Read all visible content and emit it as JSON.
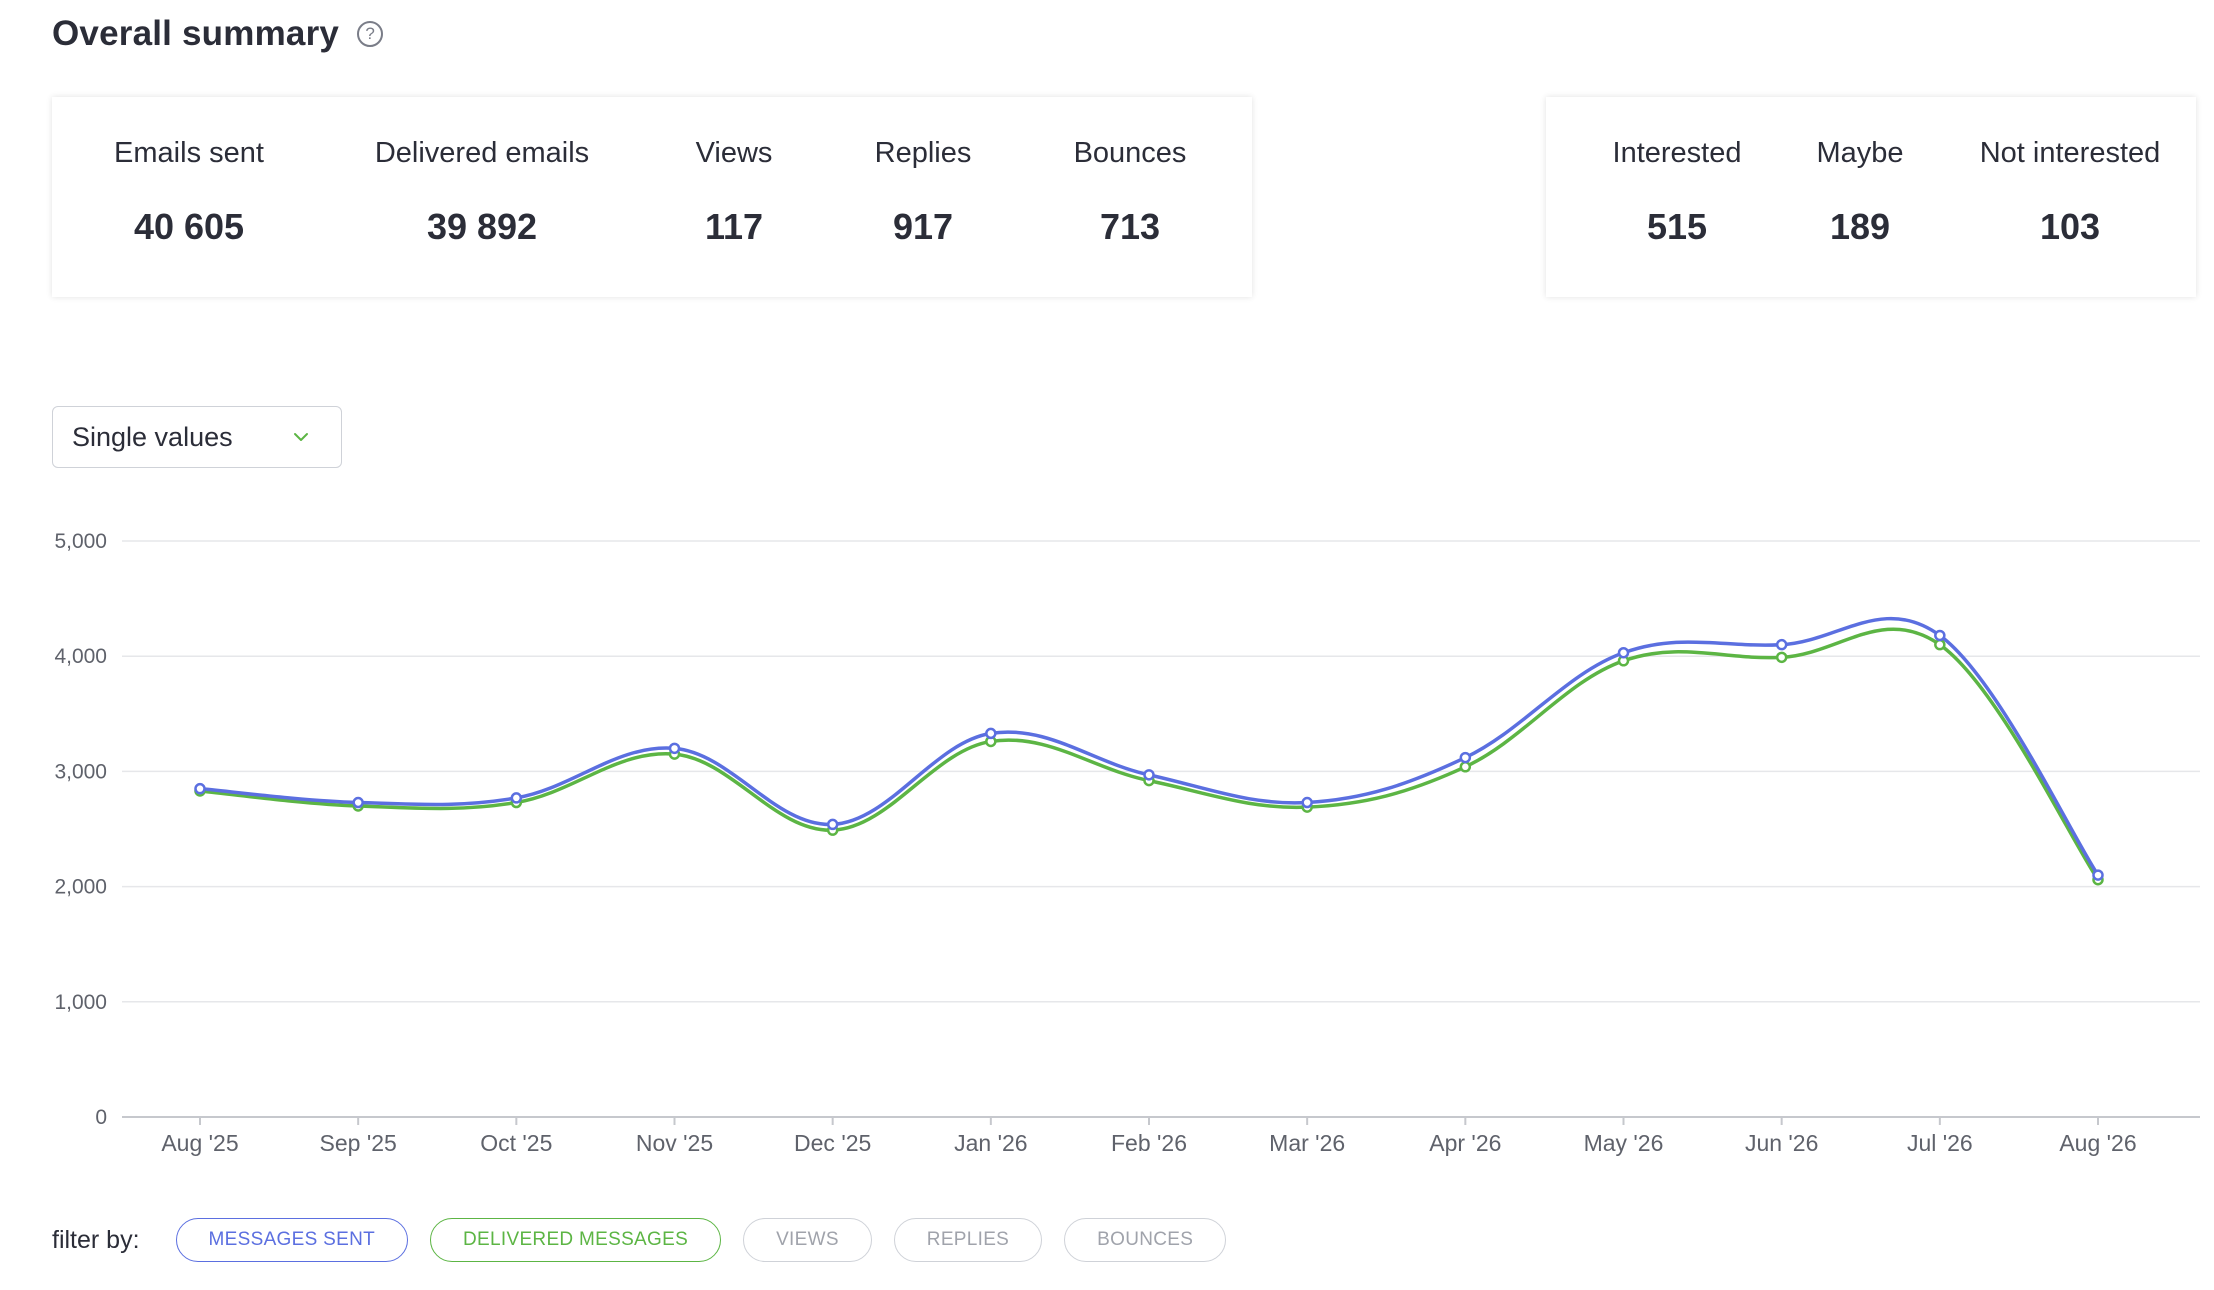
{
  "header": {
    "title": "Overall summary",
    "help_icon": "question-circle-icon"
  },
  "summary": [
    {
      "label": "Emails sent",
      "value": "40 605"
    },
    {
      "label": "Delivered emails",
      "value": "39 892"
    },
    {
      "label": "Views",
      "value": "117"
    },
    {
      "label": "Replies",
      "value": "917"
    },
    {
      "label": "Bounces",
      "value": "713"
    }
  ],
  "sentiment": [
    {
      "label": "Interested",
      "value": "515"
    },
    {
      "label": "Maybe",
      "value": "189"
    },
    {
      "label": "Not interested",
      "value": "103"
    }
  ],
  "view_select": {
    "value": "Single values",
    "icon": "chevron-down-icon"
  },
  "colors": {
    "messages_sent": "#5b6fe0",
    "delivered": "#5cb544",
    "grid": "#e6e7ea",
    "axis": "#c6c8cd",
    "tick_text": "#5f626b"
  },
  "chart_data": {
    "type": "line",
    "x": [
      "Aug '25",
      "Sep '25",
      "Oct '25",
      "Nov '25",
      "Dec '25",
      "Jan '26",
      "Feb '26",
      "Mar '26",
      "Apr '26",
      "May '26",
      "Jun '26",
      "Jul '26",
      "Aug '26"
    ],
    "yticks": [
      "0",
      "1,000",
      "2,000",
      "3,000",
      "4,000",
      "5,000"
    ],
    "ylim": [
      0,
      5000
    ],
    "grid": true,
    "series": [
      {
        "name": "MESSAGES SENT",
        "color": "#5b6fe0",
        "values": [
          2850,
          2730,
          2770,
          3200,
          2540,
          3330,
          2970,
          2730,
          3120,
          4030,
          4100,
          4180,
          2100
        ]
      },
      {
        "name": "DELIVERED MESSAGES",
        "color": "#5cb544",
        "values": [
          2830,
          2700,
          2730,
          3150,
          2490,
          3260,
          2920,
          2690,
          3040,
          3960,
          3990,
          4100,
          2060
        ]
      }
    ]
  },
  "filters": {
    "label": "filter by:",
    "chips": [
      {
        "label": "MESSAGES SENT",
        "active": true,
        "color": "#5b6fe0"
      },
      {
        "label": "DELIVERED MESSAGES",
        "active": true,
        "color": "#5cb544"
      },
      {
        "label": "VIEWS",
        "active": false
      },
      {
        "label": "REPLIES",
        "active": false
      },
      {
        "label": "BOUNCES",
        "active": false
      }
    ]
  }
}
